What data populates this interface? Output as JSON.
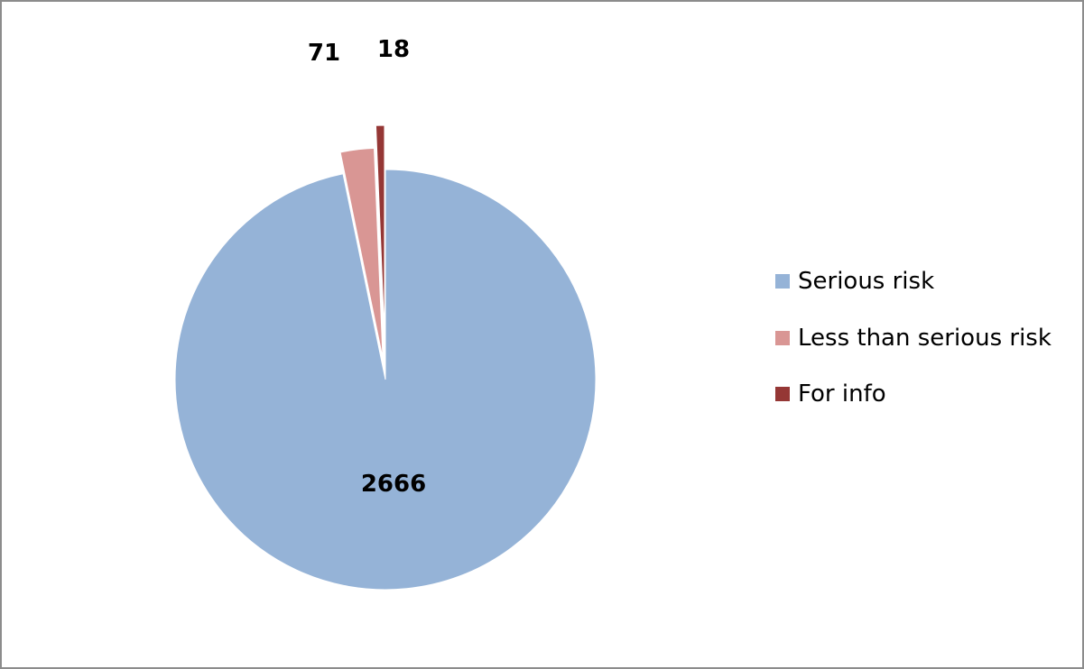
{
  "chart_data": {
    "type": "pie",
    "categories": [
      "Serious risk",
      "Less than serious risk",
      "For info"
    ],
    "values": [
      2666,
      71,
      18
    ],
    "data_labels": [
      "2666",
      "71",
      "18"
    ],
    "colors": [
      "#95b3d7",
      "#d99694",
      "#953735"
    ],
    "exploded": true,
    "legend_position": "right",
    "title": ""
  },
  "legend": {
    "items": [
      {
        "label": "Serious risk",
        "color": "#95b3d7"
      },
      {
        "label": "Less than serious risk",
        "color": "#d99694"
      },
      {
        "label": "For info",
        "color": "#953735"
      }
    ]
  }
}
